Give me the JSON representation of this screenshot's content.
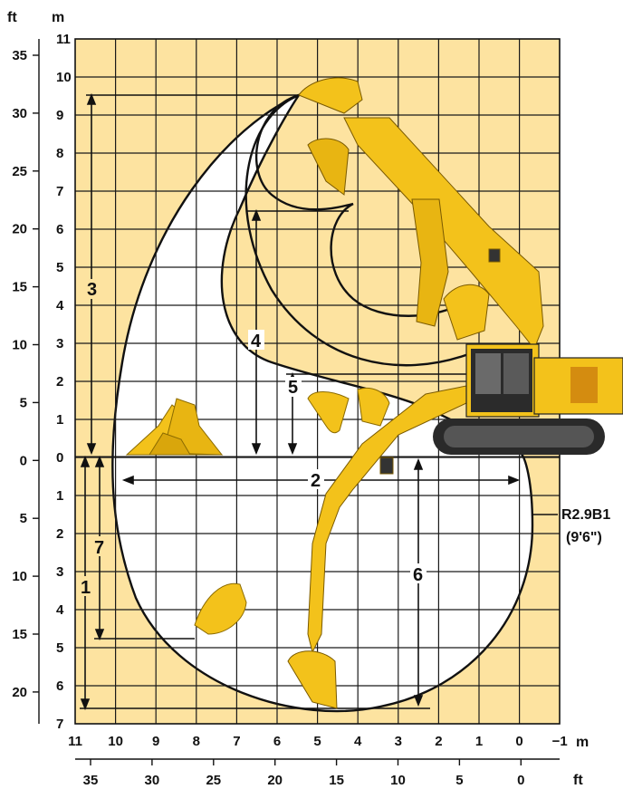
{
  "units": {
    "ft_left": "ft",
    "m_left": "m",
    "m_bottom": "m",
    "ft_bottom": "ft"
  },
  "ft_ticks_left": [
    "35",
    "30",
    "25",
    "20",
    "15",
    "10",
    "5",
    "0",
    "5",
    "10",
    "15",
    "20"
  ],
  "m_ticks_left": [
    "11",
    "10",
    "9",
    "8",
    "7",
    "6",
    "5",
    "4",
    "3",
    "2",
    "1",
    "0",
    "1",
    "2",
    "3",
    "4",
    "5",
    "6",
    "7"
  ],
  "m_ticks_bottom": [
    "11",
    "10",
    "9",
    "8",
    "7",
    "6",
    "5",
    "4",
    "3",
    "2",
    "1",
    "0",
    "−1"
  ],
  "ft_ticks_bottom": [
    "35",
    "30",
    "25",
    "20",
    "15",
    "10",
    "5",
    "0"
  ],
  "dimension_labels": [
    "1",
    "2",
    "3",
    "4",
    "5",
    "6",
    "7"
  ],
  "boom_config": {
    "code": "R2.9B1",
    "length": "(9'6\")"
  },
  "colors": {
    "grid_bg": "#fde3a0",
    "grid_line": "#1a1a1a",
    "envelope_fill": "#ffffff",
    "machine_yellow": "#f3c21b",
    "track": "#2a2a2a"
  }
}
